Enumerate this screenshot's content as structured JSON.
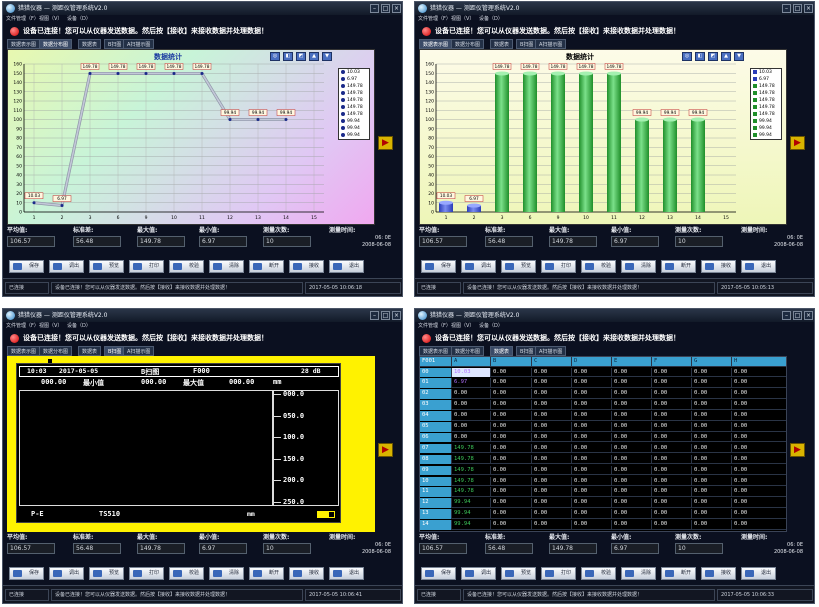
{
  "app": {
    "title": "猎猎仪器 — 测距仪管理系统V2.0",
    "menu": [
      "文件管理（F）",
      "视图（V）",
      "设备（D）"
    ],
    "status_message": "设备已连接！您可以从仪器发送数据。然后按【接收】来接收数据并处理数据！",
    "tabs": [
      "数据表示图",
      "数据分布图",
      "数据表",
      "B扫图",
      "A扫描示图"
    ],
    "side_button": "▶"
  },
  "stats": {
    "avg_label": "平均值:",
    "avg_value": "106.57",
    "std_label": "标准差:",
    "std_value": "56.48",
    "max_label": "最大值:",
    "max_value": "149.78",
    "min_label": "最小值:",
    "min_value": "6.97",
    "count_label": "测量次数:",
    "count_value": "10",
    "time_label": "测量时间:",
    "time_clock": "06: 0E",
    "time_date": "2008-06-08"
  },
  "buttons": [
    "保存",
    "调出",
    "预览",
    "打印",
    "校验",
    "清除",
    "断开",
    "接收",
    "退出"
  ],
  "footer": {
    "state": "已连接",
    "message": "设备已连接！您可以从仪器发送数据。然后按【接收】来接收数据并处理数据！",
    "times": [
      "2017-05-05 10:06:18",
      "2017-05-05 10:05:13",
      "2017-05-05 10:06:41",
      "2017-05-05 10:06:33"
    ]
  },
  "chart_data": [
    {
      "type": "line",
      "title": "数据统计",
      "x": [
        1,
        2,
        3,
        4,
        5,
        6,
        7,
        8,
        9,
        10
      ],
      "x_tick_labels": [
        "1",
        "2",
        "3",
        "6",
        "9",
        "10",
        "11",
        "12",
        "13",
        "14",
        "15"
      ],
      "values": [
        10.03,
        6.97,
        149.78,
        149.78,
        149.78,
        149.78,
        149.78,
        99.94,
        99.94,
        99.94
      ],
      "value_labels": [
        "10.03",
        "6.97",
        "149.78",
        "149.78",
        "149.78",
        "149.78",
        "149.78",
        "99.94",
        "99.94",
        "99.94"
      ],
      "y_ticks": [
        "0",
        "10",
        "20",
        "30",
        "40",
        "50",
        "60",
        "70",
        "80",
        "90",
        "100",
        "110",
        "120",
        "130",
        "140",
        "150",
        "160"
      ],
      "ylim": [
        0,
        160
      ],
      "legend": [
        "10.03",
        "6.97",
        "149.78",
        "149.78",
        "149.78",
        "149.78",
        "149.78",
        "99.94",
        "99.94",
        "99.94"
      ],
      "legend_position": "right",
      "grid": true
    },
    {
      "type": "bar",
      "title": "数据统计",
      "categories": [
        "1",
        "2",
        "3",
        "6",
        "9",
        "10",
        "11",
        "12",
        "13",
        "14"
      ],
      "x_tick_labels": [
        "1",
        "2",
        "3",
        "6",
        "9",
        "10",
        "11",
        "12",
        "13",
        "14",
        "15"
      ],
      "values": [
        10.03,
        6.97,
        149.78,
        149.78,
        149.78,
        149.78,
        149.78,
        99.94,
        99.94,
        99.94
      ],
      "value_labels": [
        "10.03",
        "6.97",
        "149.78",
        "149.78",
        "149.78",
        "149.78",
        "149.78",
        "99.94",
        "99.94",
        "99.94"
      ],
      "y_ticks": [
        "0",
        "10",
        "20",
        "30",
        "40",
        "50",
        "60",
        "70",
        "80",
        "90",
        "100",
        "110",
        "120",
        "130",
        "140",
        "150",
        "160"
      ],
      "ylim": [
        0,
        160
      ],
      "legend": [
        "10.03",
        "6.97",
        "149.78",
        "149.78",
        "149.78",
        "149.78",
        "149.78",
        "99.94",
        "99.94",
        "99.94"
      ],
      "legend_position": "right",
      "colors": {
        "low": "#2a3db8",
        "high": "#1f8f2a"
      }
    }
  ],
  "bscan": {
    "time": "10:03",
    "date": "2017-05-05",
    "mode": "B扫图",
    "code": "F000",
    "gain": "28 dB",
    "min_value": "000.00",
    "min_label": "最小值",
    "max_value": "000.00",
    "max_label": "最大值",
    "unit": "mm",
    "scale": [
      "000.0",
      "050.0",
      "100.0",
      "150.0",
      "200.0",
      "250.0"
    ],
    "probe": "P-E",
    "model": "TS510",
    "bottom_unit": "mm"
  },
  "table": {
    "headers": [
      "F001",
      "A",
      "B",
      "C",
      "D",
      "E",
      "F",
      "G",
      "H"
    ],
    "rows": [
      [
        "00",
        "10.03",
        "0.00",
        "0.00",
        "0.00",
        "0.00",
        "0.00",
        "0.00",
        "0.00"
      ],
      [
        "01",
        "6.97",
        "0.00",
        "0.00",
        "0.00",
        "0.00",
        "0.00",
        "0.00",
        "0.00"
      ],
      [
        "02",
        "0.00",
        "0.00",
        "0.00",
        "0.00",
        "0.00",
        "0.00",
        "0.00",
        "0.00"
      ],
      [
        "03",
        "0.00",
        "0.00",
        "0.00",
        "0.00",
        "0.00",
        "0.00",
        "0.00",
        "0.00"
      ],
      [
        "04",
        "0.00",
        "0.00",
        "0.00",
        "0.00",
        "0.00",
        "0.00",
        "0.00",
        "0.00"
      ],
      [
        "05",
        "0.00",
        "0.00",
        "0.00",
        "0.00",
        "0.00",
        "0.00",
        "0.00",
        "0.00"
      ],
      [
        "06",
        "0.00",
        "0.00",
        "0.00",
        "0.00",
        "0.00",
        "0.00",
        "0.00",
        "0.00"
      ],
      [
        "07",
        "149.78",
        "0.00",
        "0.00",
        "0.00",
        "0.00",
        "0.00",
        "0.00",
        "0.00"
      ],
      [
        "08",
        "149.78",
        "0.00",
        "0.00",
        "0.00",
        "0.00",
        "0.00",
        "0.00",
        "0.00"
      ],
      [
        "09",
        "149.78",
        "0.00",
        "0.00",
        "0.00",
        "0.00",
        "0.00",
        "0.00",
        "0.00"
      ],
      [
        "10",
        "149.78",
        "0.00",
        "0.00",
        "0.00",
        "0.00",
        "0.00",
        "0.00",
        "0.00"
      ],
      [
        "11",
        "149.78",
        "0.00",
        "0.00",
        "0.00",
        "0.00",
        "0.00",
        "0.00",
        "0.00"
      ],
      [
        "12",
        "99.94",
        "0.00",
        "0.00",
        "0.00",
        "0.00",
        "0.00",
        "0.00",
        "0.00"
      ],
      [
        "13",
        "99.94",
        "0.00",
        "0.00",
        "0.00",
        "0.00",
        "0.00",
        "0.00",
        "0.00"
      ],
      [
        "14",
        "99.94",
        "0.00",
        "0.00",
        "0.00",
        "0.00",
        "0.00",
        "0.00",
        "0.00"
      ]
    ]
  },
  "colors": {
    "window_bg": "#0b1020",
    "status_led": "#d40000",
    "scope_frame": "#fff200",
    "table_header": "#3aa0d0",
    "value_green": "#3cc75a",
    "value_purple": "#b070ff"
  }
}
